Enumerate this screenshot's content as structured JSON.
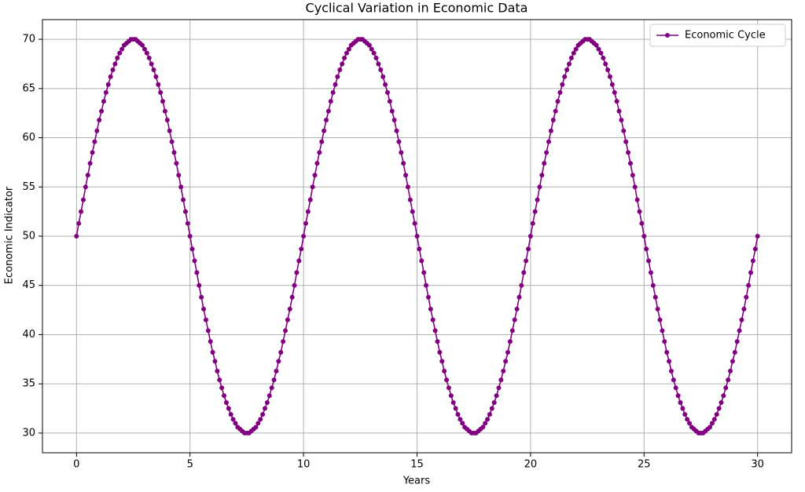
{
  "chart_data": {
    "type": "line",
    "title": "Cyclical Variation in Economic Data",
    "x_label": "Years",
    "y_label": "Economic Indicator",
    "x": [
      0,
      0.1,
      0.2,
      0.3,
      0.4,
      0.5,
      0.6,
      0.7,
      0.8,
      0.9,
      1,
      1.1,
      1.2,
      1.3,
      1.4,
      1.5,
      1.6,
      1.7,
      1.8,
      1.9,
      2,
      2.1,
      2.2,
      2.3,
      2.4,
      2.5,
      2.6,
      2.7,
      2.8,
      2.9,
      3,
      3.1,
      3.2,
      3.3,
      3.4,
      3.5,
      3.6,
      3.7,
      3.8,
      3.9,
      4,
      4.1,
      4.2,
      4.3,
      4.4,
      4.5,
      4.6,
      4.7,
      4.8,
      4.9,
      5,
      5.1,
      5.2,
      5.3,
      5.4,
      5.5,
      5.6,
      5.7,
      5.8,
      5.9,
      6,
      6.1,
      6.2,
      6.3,
      6.4,
      6.5,
      6.6,
      6.7,
      6.8,
      6.9,
      7,
      7.1,
      7.2,
      7.3,
      7.4,
      7.5,
      7.6,
      7.7,
      7.8,
      7.9,
      8,
      8.1,
      8.2,
      8.3,
      8.4,
      8.5,
      8.6,
      8.7,
      8.8,
      8.9,
      9,
      9.1,
      9.2,
      9.3,
      9.4,
      9.5,
      9.6,
      9.7,
      9.8,
      9.9,
      10,
      10.1,
      10.2,
      10.3,
      10.4,
      10.5,
      10.6,
      10.7,
      10.8,
      10.9,
      11,
      11.1,
      11.2,
      11.3,
      11.4,
      11.5,
      11.6,
      11.7,
      11.8,
      11.9,
      12,
      12.1,
      12.2,
      12.3,
      12.4,
      12.5,
      12.6,
      12.7,
      12.8,
      12.9,
      13,
      13.1,
      13.2,
      13.3,
      13.4,
      13.5,
      13.6,
      13.7,
      13.8,
      13.9,
      14,
      14.1,
      14.2,
      14.3,
      14.4,
      14.5,
      14.6,
      14.7,
      14.8,
      14.9,
      15,
      15.1,
      15.2,
      15.3,
      15.4,
      15.5,
      15.6,
      15.7,
      15.8,
      15.9,
      16,
      16.1,
      16.2,
      16.3,
      16.4,
      16.5,
      16.6,
      16.7,
      16.8,
      16.9,
      17,
      17.1,
      17.2,
      17.3,
      17.4,
      17.5,
      17.6,
      17.7,
      17.8,
      17.9,
      18,
      18.1,
      18.2,
      18.3,
      18.4,
      18.5,
      18.6,
      18.7,
      18.8,
      18.9,
      19,
      19.1,
      19.2,
      19.3,
      19.4,
      19.5,
      19.6,
      19.7,
      19.8,
      19.9,
      20,
      20.1,
      20.2,
      20.3,
      20.4,
      20.5,
      20.6,
      20.7,
      20.8,
      20.9,
      21,
      21.1,
      21.2,
      21.3,
      21.4,
      21.5,
      21.6,
      21.7,
      21.8,
      21.9,
      22,
      22.1,
      22.2,
      22.3,
      22.4,
      22.5,
      22.6,
      22.7,
      22.8,
      22.9,
      23,
      23.1,
      23.2,
      23.3,
      23.4,
      23.5,
      23.6,
      23.7,
      23.8,
      23.9,
      24,
      24.1,
      24.2,
      24.3,
      24.4,
      24.5,
      24.6,
      24.7,
      24.8,
      24.9,
      25,
      25.1,
      25.2,
      25.3,
      25.4,
      25.5,
      25.6,
      25.7,
      25.8,
      25.9,
      26,
      26.1,
      26.2,
      26.3,
      26.4,
      26.5,
      26.6,
      26.7,
      26.8,
      26.9,
      27,
      27.1,
      27.2,
      27.3,
      27.4,
      27.5,
      27.6,
      27.7,
      27.8,
      27.9,
      28,
      28.1,
      28.2,
      28.3,
      28.4,
      28.5,
      28.6,
      28.7,
      28.8,
      28.9,
      29,
      29.1,
      29.2,
      29.3,
      29.4,
      29.5,
      29.6,
      29.7,
      29.8,
      29.9,
      30
    ],
    "series": [
      {
        "name": "Economic Cycle",
        "color": "#800080",
        "values": [
          50,
          51.3,
          52.5,
          53.7,
          55,
          56.2,
          57.4,
          58.5,
          59.6,
          60.7,
          61.8,
          62.7,
          63.7,
          64.6,
          65.4,
          66.2,
          66.9,
          67.5,
          68.1,
          68.6,
          69,
          69.4,
          69.6,
          69.8,
          70,
          70,
          70,
          69.8,
          69.6,
          69.4,
          69,
          68.6,
          68.1,
          67.5,
          66.9,
          66.2,
          65.4,
          64.6,
          63.7,
          62.7,
          61.8,
          60.7,
          59.6,
          58.5,
          57.4,
          56.2,
          55,
          53.7,
          52.5,
          51.3,
          50,
          48.7,
          47.5,
          46.3,
          45,
          43.8,
          42.6,
          41.5,
          40.4,
          39.3,
          38.2,
          37.3,
          36.3,
          35.4,
          34.6,
          33.8,
          33.1,
          32.5,
          31.9,
          31.4,
          31,
          30.6,
          30.4,
          30.2,
          30,
          30,
          30,
          30.2,
          30.4,
          30.6,
          31,
          31.4,
          31.9,
          32.5,
          33.1,
          33.8,
          34.6,
          35.4,
          36.3,
          37.3,
          38.2,
          39.3,
          40.4,
          41.5,
          42.6,
          43.8,
          45,
          46.3,
          47.5,
          48.7,
          50,
          51.3,
          52.5,
          53.7,
          55,
          56.2,
          57.4,
          58.5,
          59.6,
          60.7,
          61.8,
          62.7,
          63.7,
          64.6,
          65.4,
          66.2,
          66.9,
          67.5,
          68.1,
          68.6,
          69,
          69.4,
          69.6,
          69.8,
          70,
          70,
          70,
          69.8,
          69.6,
          69.4,
          69,
          68.6,
          68.1,
          67.5,
          66.9,
          66.2,
          65.4,
          64.6,
          63.7,
          62.7,
          61.8,
          60.7,
          59.6,
          58.5,
          57.4,
          56.2,
          55,
          53.7,
          52.5,
          51.3,
          50,
          48.7,
          47.5,
          46.3,
          45,
          43.8,
          42.6,
          41.5,
          40.4,
          39.3,
          38.2,
          37.3,
          36.3,
          35.4,
          34.6,
          33.8,
          33.1,
          32.5,
          31.9,
          31.4,
          31,
          30.6,
          30.4,
          30.2,
          30,
          30,
          30,
          30.2,
          30.4,
          30.6,
          31,
          31.4,
          31.9,
          32.5,
          33.1,
          33.8,
          34.6,
          35.4,
          36.3,
          37.3,
          38.2,
          39.3,
          40.4,
          41.5,
          42.6,
          43.8,
          45,
          46.3,
          47.5,
          48.7,
          50,
          51.3,
          52.5,
          53.7,
          55,
          56.2,
          57.4,
          58.5,
          59.6,
          60.7,
          61.8,
          62.7,
          63.7,
          64.6,
          65.4,
          66.2,
          66.9,
          67.5,
          68.1,
          68.6,
          69,
          69.4,
          69.6,
          69.8,
          70,
          70,
          70,
          69.8,
          69.6,
          69.4,
          69,
          68.6,
          68.1,
          67.5,
          66.9,
          66.2,
          65.4,
          64.6,
          63.7,
          62.7,
          61.8,
          60.7,
          59.6,
          58.5,
          57.4,
          56.2,
          55,
          53.7,
          52.5,
          51.3,
          50,
          48.7,
          47.5,
          46.3,
          45,
          43.8,
          42.6,
          41.5,
          40.4,
          39.3,
          38.2,
          37.3,
          36.3,
          35.4,
          34.6,
          33.8,
          33.1,
          32.5,
          31.9,
          31.4,
          31,
          30.6,
          30.4,
          30.2,
          30,
          30,
          30,
          30.2,
          30.4,
          30.6,
          31,
          31.4,
          31.9,
          32.5,
          33.1,
          33.8,
          34.6,
          35.4,
          36.3,
          37.3,
          38.2,
          39.3,
          40.4,
          41.5,
          42.6,
          43.8,
          45,
          46.3,
          47.5,
          48.7,
          50
        ]
      }
    ],
    "xlim": [
      -1.5,
      31.5
    ],
    "ylim": [
      28,
      72
    ],
    "xticks": [
      0,
      5,
      10,
      15,
      20,
      25,
      30
    ],
    "yticks": [
      30,
      35,
      40,
      45,
      50,
      55,
      60,
      65,
      70
    ],
    "grid": true,
    "legend": "upper right"
  }
}
